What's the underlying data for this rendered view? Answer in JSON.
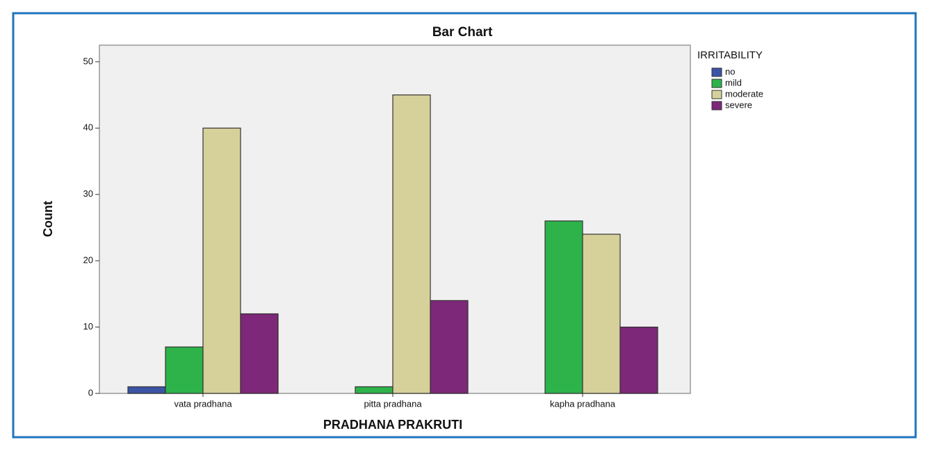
{
  "chart_data": {
    "type": "bar",
    "title": "Bar Chart",
    "x_label": "PRADHANA PRAKRUTI",
    "y_label": "Count",
    "legend_title": "IRRITABILITY",
    "categories": [
      "vata pradhana",
      "pitta pradhana",
      "kapha pradhana"
    ],
    "series": [
      {
        "name": "no",
        "color": "#3b54a6",
        "values": [
          1,
          null,
          null
        ]
      },
      {
        "name": "mild",
        "color": "#2db34a",
        "values": [
          7,
          1,
          26
        ]
      },
      {
        "name": "moderate",
        "color": "#d6d09a",
        "values": [
          40,
          45,
          24
        ]
      },
      {
        "name": "severe",
        "color": "#7d2878",
        "values": [
          12,
          14,
          10
        ]
      }
    ],
    "ylim": [
      0,
      52.5
    ],
    "yticks": [
      0,
      10,
      20,
      30,
      40,
      50
    ],
    "grid": false,
    "legend": "right"
  }
}
